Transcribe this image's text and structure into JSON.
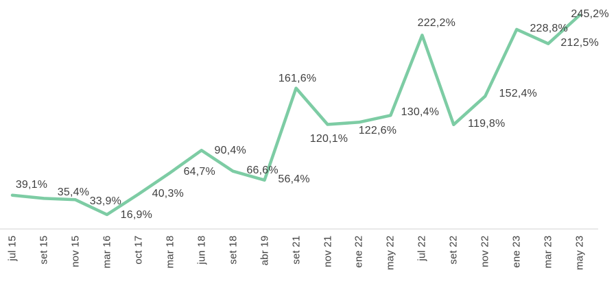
{
  "chart_data": {
    "type": "line",
    "title": "",
    "xlabel": "",
    "ylabel": "",
    "grid": false,
    "legend": false,
    "categories": [
      "jul 15",
      "set 15",
      "nov 15",
      "mar 16",
      "oct 17",
      "mar 18",
      "jun 18",
      "set 18",
      "abr 19",
      "set 21",
      "nov 21",
      "ene 22",
      "may 22",
      "jul 22",
      "set 22",
      "nov 22",
      "ene 23",
      "mar 23",
      "may 23"
    ],
    "values": [
      39.1,
      35.4,
      33.9,
      16.9,
      40.3,
      64.7,
      90.4,
      66.6,
      56.4,
      161.6,
      120.1,
      122.6,
      130.4,
      222.2,
      119.8,
      152.4,
      228.8,
      212.5,
      245.2
    ],
    "point_labels": [
      "39,1%",
      "35,4%",
      "33,9%",
      "16,9%",
      "40,3%",
      "64,7%",
      "90,4%",
      "66,6%",
      "56,4%",
      "161,6%",
      "120,1%",
      "122,6%",
      "130,4%",
      "222,2%",
      "119,8%",
      "152,4%",
      "228,8%",
      "212,5%",
      "245,2%"
    ],
    "value_range_shown": [
      16.9,
      245.2
    ],
    "colors": {
      "line": "#7dcca4",
      "label_text": "#3f3f3f",
      "tick_text": "#3f3f3f",
      "axis_line": "#d9d9d9"
    }
  }
}
